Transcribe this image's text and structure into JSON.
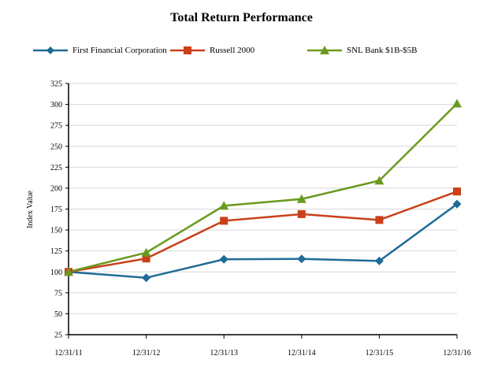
{
  "chart_data": {
    "type": "line",
    "title": "Total Return Performance",
    "xlabel": "",
    "ylabel": "Index Value",
    "categories": [
      "12/31/11",
      "12/31/12",
      "12/31/13",
      "12/31/14",
      "12/31/15",
      "12/31/16"
    ],
    "ylim": [
      25,
      325
    ],
    "yticks": [
      25,
      50,
      75,
      100,
      125,
      150,
      175,
      200,
      225,
      250,
      275,
      300,
      325
    ],
    "grid": true,
    "legend_position": "top",
    "series": [
      {
        "name": "First Financial Corporation",
        "color": "#1f6b96",
        "marker": "diamond",
        "values": [
          100,
          93,
          115,
          115.5,
          113,
          181
        ]
      },
      {
        "name": "Russell 2000",
        "color": "#c9401a",
        "marker": "square",
        "values": [
          100,
          116,
          161,
          169,
          162,
          196
        ]
      },
      {
        "name": "SNL Bank $1B-$5B",
        "color": "#6a9a1f",
        "marker": "triangle",
        "values": [
          100,
          123,
          179,
          187,
          209,
          301
        ]
      }
    ]
  }
}
